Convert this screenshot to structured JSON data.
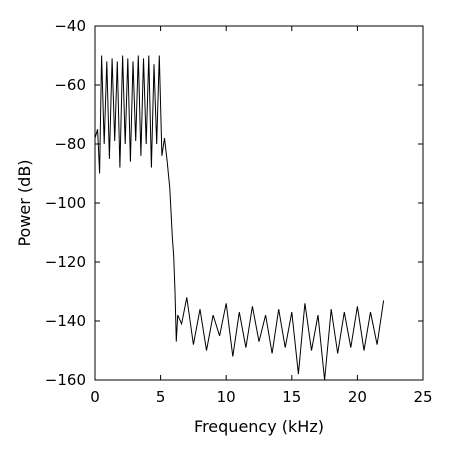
{
  "chart_data": {
    "type": "line",
    "title": "",
    "xlabel": "Frequency (kHz)",
    "ylabel": "Power (dB)",
    "xlim": [
      0,
      25
    ],
    "ylim": [
      -160,
      -40
    ],
    "x_ticks": [
      0,
      5,
      10,
      15,
      20,
      25
    ],
    "y_ticks": [
      -40,
      -60,
      -80,
      -100,
      -120,
      -140,
      -160
    ],
    "x_tick_labels": [
      "0",
      "5",
      "10",
      "15",
      "20",
      "25"
    ],
    "y_tick_labels": [
      "−40",
      "−60",
      "−80",
      "−100",
      "−120",
      "−140",
      "−160"
    ],
    "grid": false,
    "series": [
      {
        "color": "#000000",
        "description_of_shape": "noisy power spectrum",
        "x": [
          0.0,
          0.2,
          0.35,
          0.5,
          0.7,
          0.9,
          1.1,
          1.3,
          1.5,
          1.7,
          1.9,
          2.1,
          2.3,
          2.5,
          2.7,
          2.9,
          3.1,
          3.3,
          3.5,
          3.7,
          3.9,
          4.1,
          4.3,
          4.5,
          4.7,
          4.9,
          5.1,
          5.3,
          5.5,
          5.7,
          5.9,
          6.0,
          6.1,
          6.2,
          6.3,
          6.6,
          7.0,
          7.5,
          8.0,
          8.5,
          9.0,
          9.5,
          10.0,
          10.5,
          11.0,
          11.5,
          12.0,
          12.5,
          13.0,
          13.5,
          14.0,
          14.5,
          15.0,
          15.5,
          16.0,
          16.5,
          17.0,
          17.5,
          18.0,
          18.5,
          19.0,
          19.5,
          20.0,
          20.5,
          21.0,
          21.5,
          22.0
        ],
        "y": [
          -78,
          -75,
          -90,
          -50,
          -80,
          -52,
          -85,
          -51,
          -79,
          -52,
          -88,
          -50,
          -80,
          -51,
          -86,
          -52,
          -79,
          -50,
          -84,
          -51,
          -80,
          -50,
          -88,
          -53,
          -80,
          -50,
          -84,
          -78,
          -86,
          -95,
          -112,
          -118,
          -130,
          -147,
          -138,
          -141,
          -132,
          -148,
          -136,
          -150,
          -138,
          -145,
          -134,
          -152,
          -137,
          -149,
          -135,
          -147,
          -138,
          -151,
          -136,
          -149,
          -137,
          -158,
          -134,
          -150,
          -138,
          -160,
          -136,
          -151,
          -137,
          -149,
          -135,
          -150,
          -137,
          -148,
          -133
        ]
      }
    ]
  }
}
